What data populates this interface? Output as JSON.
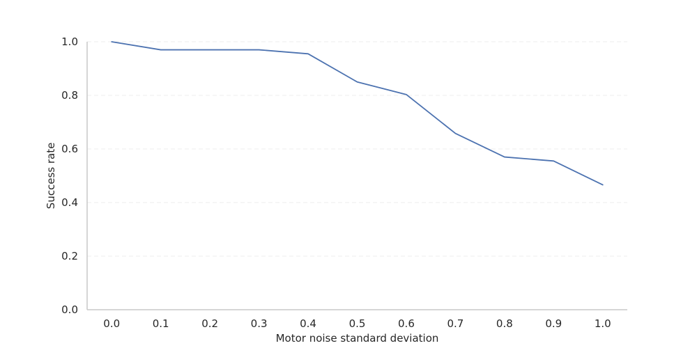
{
  "chart_data": {
    "type": "line",
    "title": "",
    "xlabel": "Motor noise standard deviation",
    "ylabel": "Success rate",
    "x": [
      0.0,
      0.1,
      0.2,
      0.3,
      0.4,
      0.5,
      0.6,
      0.7,
      0.8,
      0.9,
      1.0
    ],
    "x_tick_labels": [
      "0.0",
      "0.1",
      "0.2",
      "0.3",
      "0.4",
      "0.5",
      "0.6",
      "0.7",
      "0.8",
      "0.9",
      "1.0"
    ],
    "y_ticks": [
      0.0,
      0.2,
      0.4,
      0.6,
      0.8,
      1.0
    ],
    "y_tick_labels": [
      "0.0",
      "0.2",
      "0.4",
      "0.6",
      "0.8",
      "1.0"
    ],
    "xlim": [
      -0.05,
      1.05
    ],
    "ylim": [
      0.0,
      1.0
    ],
    "grid": "horizontal-dashed",
    "legend": "none",
    "series": [
      {
        "values": [
          1.0,
          0.97,
          0.97,
          0.97,
          0.955,
          0.85,
          0.803,
          0.658,
          0.57,
          0.555,
          0.466
        ],
        "color": "#4c72b0"
      }
    ]
  }
}
